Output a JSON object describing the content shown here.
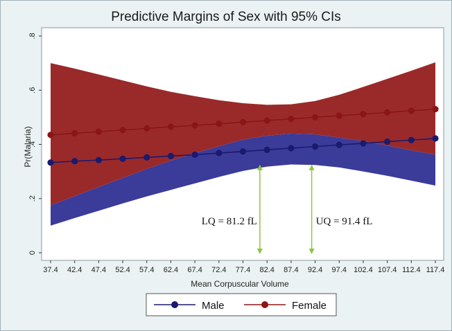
{
  "chart_data": {
    "type": "line",
    "title": "Predictive Margins of Sex with 95% CIs",
    "xlabel": "Mean Corpuscular Volume",
    "ylabel": "Pr(Malaria)",
    "x": [
      37.4,
      42.4,
      47.4,
      52.4,
      57.4,
      62.4,
      67.4,
      72.4,
      77.4,
      82.4,
      87.4,
      92.4,
      97.4,
      102.4,
      107.4,
      112.4,
      117.4
    ],
    "x_tick_labels": [
      "37.4",
      "42.4",
      "47.4",
      "52.4",
      "57.4",
      "62.4",
      "67.4",
      "72.4",
      "77.4",
      "82.4",
      "87.4",
      "92.4",
      "97.4",
      "102.4",
      "107.4",
      "112.4",
      "117.4"
    ],
    "y_ticks": [
      0,
      0.2,
      0.4,
      0.6,
      0.8
    ],
    "y_tick_labels": [
      "0",
      ".2",
      ".4",
      ".6",
      ".8"
    ],
    "ylim": [
      0,
      0.8
    ],
    "xlim": [
      37.4,
      117.4
    ],
    "series": [
      {
        "name": "Male",
        "color": "#1a1a6e",
        "band_color": "#3b3b9a",
        "values": [
          0.333,
          0.338,
          0.342,
          0.347,
          0.352,
          0.357,
          0.362,
          0.368,
          0.374,
          0.38,
          0.386,
          0.392,
          0.398,
          0.404,
          0.41,
          0.416,
          0.422
        ],
        "ci_lower": [
          0.1,
          0.128,
          0.155,
          0.182,
          0.208,
          0.232,
          0.256,
          0.28,
          0.302,
          0.318,
          0.326,
          0.324,
          0.315,
          0.3,
          0.284,
          0.266,
          0.248
        ],
        "ci_upper": [
          0.175,
          0.209,
          0.243,
          0.276,
          0.31,
          0.34,
          0.368,
          0.393,
          0.418,
          0.432,
          0.44,
          0.437,
          0.425,
          0.412,
          0.396,
          0.378,
          0.362
        ]
      },
      {
        "name": "Female",
        "color": "#8b1515",
        "band_color": "#9a2a2a",
        "values": [
          0.435,
          0.441,
          0.447,
          0.453,
          0.459,
          0.465,
          0.47,
          0.476,
          0.482,
          0.488,
          0.494,
          0.5,
          0.506,
          0.512,
          0.518,
          0.524,
          0.53
        ],
        "ci_lower": [
          0.175,
          0.209,
          0.243,
          0.276,
          0.31,
          0.34,
          0.368,
          0.393,
          0.418,
          0.432,
          0.44,
          0.437,
          0.425,
          0.412,
          0.396,
          0.378,
          0.362
        ],
        "ci_upper": [
          0.7,
          0.68,
          0.658,
          0.636,
          0.614,
          0.594,
          0.578,
          0.563,
          0.552,
          0.546,
          0.548,
          0.56,
          0.583,
          0.612,
          0.642,
          0.672,
          0.703
        ]
      }
    ],
    "annotations": [
      {
        "text": "LQ = 81.2 fL",
        "x": 81.2,
        "y_from": 0.32,
        "y_to": 0.0
      },
      {
        "text": "UQ = 91.4 fL",
        "x": 91.4,
        "y_from": 0.32,
        "y_to": 0.0
      }
    ],
    "annotation_arrow_color": "#8cc63f",
    "legend": {
      "position": "bottom",
      "entries": [
        "Male",
        "Female"
      ]
    }
  }
}
